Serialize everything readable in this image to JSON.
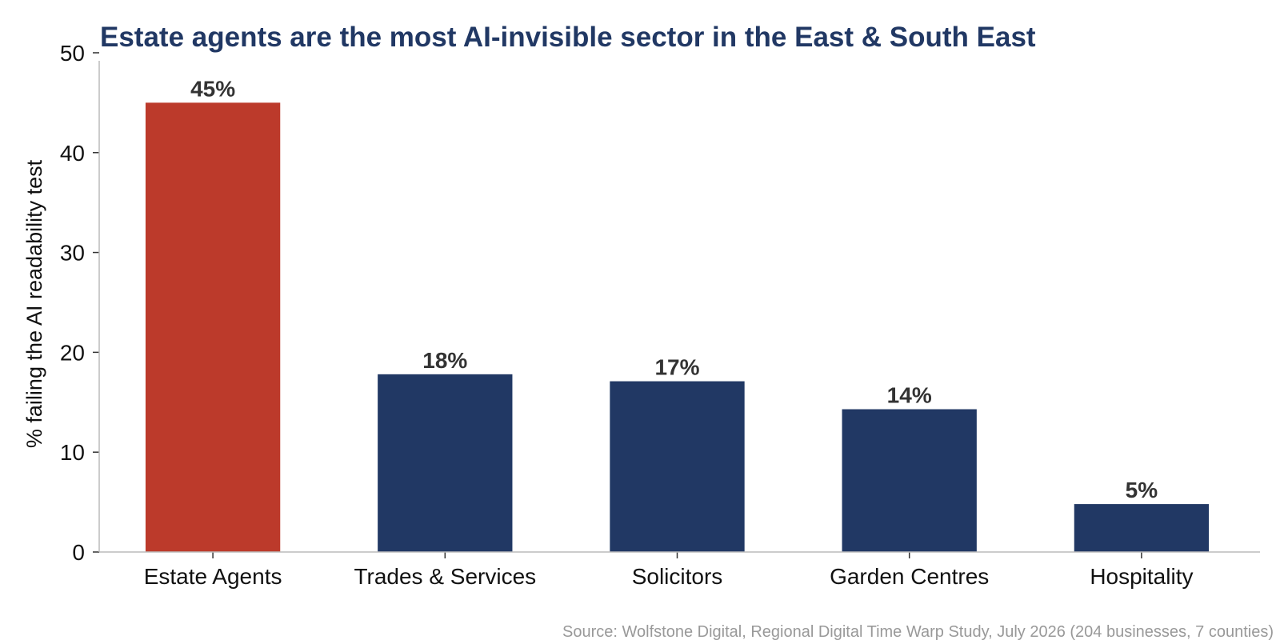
{
  "chart_data": {
    "type": "bar",
    "title": "Estate agents are the most AI-invisible sector in the East & South East",
    "ylabel": "% failing the AI readability test",
    "xlabel": "",
    "categories": [
      "Estate Agents",
      "Trades & Services",
      "Solicitors",
      "Garden Centres",
      "Hospitality"
    ],
    "values": [
      45,
      17.8,
      17.1,
      14.3,
      4.8
    ],
    "data_labels": [
      "45%",
      "18%",
      "17%",
      "14%",
      "5%"
    ],
    "ylim": [
      0,
      52
    ],
    "yticks": [
      0,
      10,
      20,
      30,
      40,
      50
    ],
    "ytick_labels": [
      "0",
      "10",
      "20",
      "30",
      "40",
      "50"
    ],
    "bar_colors": [
      "#BC3A2B",
      "#213864",
      "#213864",
      "#213864",
      "#213864"
    ],
    "highlight_color": "#BC3A2B",
    "base_color": "#213864",
    "title_color": "#213864",
    "grid": false,
    "legend": false,
    "source": "Source: Wolfstone Digital, Regional Digital Time Warp Study, July 2026 (204 businesses, 7 counties)"
  }
}
